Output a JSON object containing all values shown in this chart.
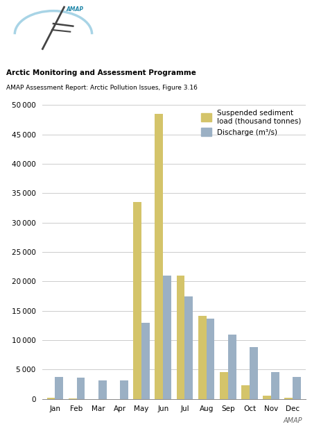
{
  "months": [
    "Jan",
    "Feb",
    "Mar",
    "Apr",
    "May",
    "Jun",
    "Jul",
    "Aug",
    "Sep",
    "Oct",
    "Nov",
    "Dec"
  ],
  "sediment": [
    200,
    100,
    0,
    0,
    33500,
    48500,
    21000,
    14200,
    4600,
    2300,
    600,
    200
  ],
  "discharge": [
    3700,
    3600,
    3200,
    3200,
    13000,
    21000,
    17500,
    13700,
    11000,
    8800,
    4600,
    3700
  ],
  "sediment_color": "#D4C46A",
  "discharge_color": "#9BB0C4",
  "ylim": [
    0,
    50000
  ],
  "yticks": [
    0,
    5000,
    10000,
    15000,
    20000,
    25000,
    30000,
    35000,
    40000,
    45000,
    50000
  ],
  "legend_sediment": "Suspended sediment\nload (thousand tonnes)",
  "legend_discharge": "Discharge (m³/s)",
  "header_bold": "Arctic Monitoring and Assessment Programme",
  "header_sub": "AMAP Assessment Report: Arctic Pollution Issues, Figure 3.16",
  "footer": "AMAP",
  "background_color": "#ffffff",
  "grid_color": "#cccccc",
  "logo_arc_color": "#A8D4E6",
  "logo_line_color": "#444444",
  "logo_text_color": "#2288AA"
}
